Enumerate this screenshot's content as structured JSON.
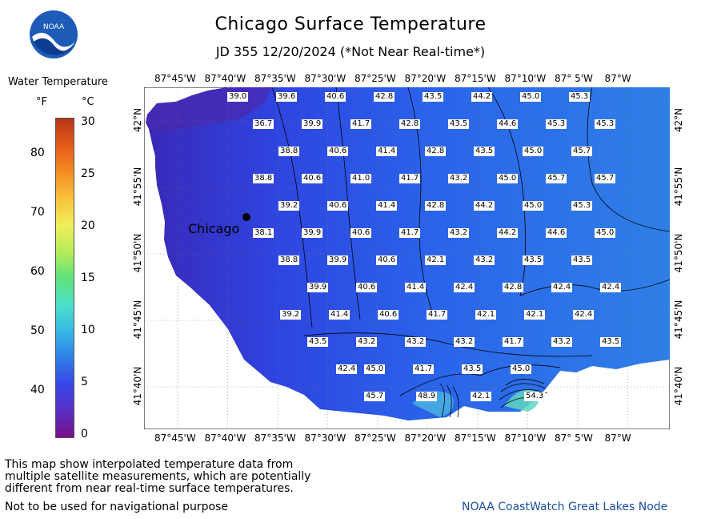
{
  "header": {
    "title": "Chicago Surface Temperature",
    "subtitle": "JD 355 12/20/2024 (*Not Near Real-time*)",
    "logo_text": "NOAA"
  },
  "legend": {
    "title": "Water Temperature",
    "unit_f": "°F",
    "unit_c": "°C",
    "f_ticks": [
      "80",
      "70",
      "60",
      "50",
      "40"
    ],
    "c_ticks": [
      "30",
      "25",
      "20",
      "15",
      "10",
      "5",
      "0"
    ],
    "colors": [
      "#7a0f8a",
      "#5a2fc4",
      "#3a46e8",
      "#2f7fe6",
      "#38b8e6",
      "#4de0c8",
      "#5fe27a",
      "#b8ec5a",
      "#f0ef5a",
      "#f7c23a",
      "#f58a22",
      "#e35a18",
      "#b4361a"
    ]
  },
  "map": {
    "lon_labels": [
      "87°45'W",
      "87°40'W",
      "87°35'W",
      "87°30'W",
      "87°25'W",
      "87°20'W",
      "87°15'W",
      "87°10'W",
      "87° 5'W",
      "87°W"
    ],
    "lat_labels": [
      "42°N",
      "41°55'N",
      "41°50'N",
      "41°45'N",
      "41°40'N"
    ],
    "city_label": "Chicago",
    "temperature_points": [
      {
        "label": "39.0",
        "row": 0,
        "col": 0
      },
      {
        "label": "39.6",
        "row": 0,
        "col": 1
      },
      {
        "label": "40.6",
        "row": 0,
        "col": 2
      },
      {
        "label": "42.8",
        "row": 0,
        "col": 3
      },
      {
        "label": "43.5",
        "row": 0,
        "col": 4
      },
      {
        "label": "44.2",
        "row": 0,
        "col": 5
      },
      {
        "label": "45.0",
        "row": 0,
        "col": 6
      },
      {
        "label": "45.3",
        "row": 0,
        "col": 7
      },
      {
        "label": "36.7",
        "row": 1,
        "col": 0
      },
      {
        "label": "39.9",
        "row": 1,
        "col": 1
      },
      {
        "label": "41.7",
        "row": 1,
        "col": 2
      },
      {
        "label": "42.8",
        "row": 1,
        "col": 3
      },
      {
        "label": "43.5",
        "row": 1,
        "col": 4
      },
      {
        "label": "44.6",
        "row": 1,
        "col": 5
      },
      {
        "label": "45.3",
        "row": 1,
        "col": 6
      },
      {
        "label": "45.3",
        "row": 1,
        "col": 7
      },
      {
        "label": "38.8",
        "row": 2,
        "col": 0
      },
      {
        "label": "40.6",
        "row": 2,
        "col": 1
      },
      {
        "label": "41.4",
        "row": 2,
        "col": 2
      },
      {
        "label": "42.8",
        "row": 2,
        "col": 3
      },
      {
        "label": "43.5",
        "row": 2,
        "col": 4
      },
      {
        "label": "45.0",
        "row": 2,
        "col": 5
      },
      {
        "label": "45.7",
        "row": 2,
        "col": 6
      },
      {
        "label": "38.8",
        "row": 3,
        "col": 0
      },
      {
        "label": "40.6",
        "row": 3,
        "col": 1
      },
      {
        "label": "41.0",
        "row": 3,
        "col": 2
      },
      {
        "label": "41.7",
        "row": 3,
        "col": 3
      },
      {
        "label": "43.2",
        "row": 3,
        "col": 4
      },
      {
        "label": "45.0",
        "row": 3,
        "col": 5
      },
      {
        "label": "45.7",
        "row": 3,
        "col": 6
      },
      {
        "label": "45.7",
        "row": 3,
        "col": 7
      },
      {
        "label": "39.2",
        "row": 4,
        "col": 0
      },
      {
        "label": "40.6",
        "row": 4,
        "col": 1
      },
      {
        "label": "41.4",
        "row": 4,
        "col": 2
      },
      {
        "label": "42.8",
        "row": 4,
        "col": 3
      },
      {
        "label": "44.2",
        "row": 4,
        "col": 4
      },
      {
        "label": "45.0",
        "row": 4,
        "col": 5
      },
      {
        "label": "45.3",
        "row": 4,
        "col": 6
      },
      {
        "label": "38.1",
        "row": 5,
        "col": 0
      },
      {
        "label": "39.9",
        "row": 5,
        "col": 1
      },
      {
        "label": "40.6",
        "row": 5,
        "col": 2
      },
      {
        "label": "41.7",
        "row": 5,
        "col": 3
      },
      {
        "label": "43.2",
        "row": 5,
        "col": 4
      },
      {
        "label": "44.2",
        "row": 5,
        "col": 5
      },
      {
        "label": "44.6",
        "row": 5,
        "col": 6
      },
      {
        "label": "45.0",
        "row": 5,
        "col": 7
      },
      {
        "label": "38.8",
        "row": 6,
        "col": 0
      },
      {
        "label": "39.9",
        "row": 6,
        "col": 1
      },
      {
        "label": "40.6",
        "row": 6,
        "col": 2
      },
      {
        "label": "42.1",
        "row": 6,
        "col": 3
      },
      {
        "label": "43.2",
        "row": 6,
        "col": 4
      },
      {
        "label": "43.5",
        "row": 6,
        "col": 5
      },
      {
        "label": "43.5",
        "row": 6,
        "col": 6
      },
      {
        "label": "39.9",
        "row": 7,
        "col": 0
      },
      {
        "label": "40.6",
        "row": 7,
        "col": 1
      },
      {
        "label": "41.4",
        "row": 7,
        "col": 2
      },
      {
        "label": "42.4",
        "row": 7,
        "col": 3
      },
      {
        "label": "42.8",
        "row": 7,
        "col": 4
      },
      {
        "label": "42.4",
        "row": 7,
        "col": 5
      },
      {
        "label": "42.4",
        "row": 7,
        "col": 6
      },
      {
        "label": "39.2",
        "row": 8,
        "col": 0
      },
      {
        "label": "41.4",
        "row": 8,
        "col": 1
      },
      {
        "label": "40.6",
        "row": 8,
        "col": 2
      },
      {
        "label": "41.7",
        "row": 8,
        "col": 3
      },
      {
        "label": "42.1",
        "row": 8,
        "col": 4
      },
      {
        "label": "42.1",
        "row": 8,
        "col": 5
      },
      {
        "label": "42.4",
        "row": 8,
        "col": 6
      },
      {
        "label": "43.5",
        "row": 9,
        "col": 0
      },
      {
        "label": "43.2",
        "row": 9,
        "col": 1
      },
      {
        "label": "43.2",
        "row": 9,
        "col": 2
      },
      {
        "label": "43.2",
        "row": 9,
        "col": 3
      },
      {
        "label": "41.7",
        "row": 9,
        "col": 4
      },
      {
        "label": "43.2",
        "row": 9,
        "col": 5
      },
      {
        "label": "43.5",
        "row": 9,
        "col": 6
      },
      {
        "label": "42.4",
        "row": 10,
        "col": 0
      },
      {
        "label": "45.0",
        "row": 10,
        "col": 1
      },
      {
        "label": "41.7",
        "row": 10,
        "col": 2
      },
      {
        "label": "43.5",
        "row": 10,
        "col": 3
      },
      {
        "label": "45.0",
        "row": 10,
        "col": 4
      },
      {
        "label": "45.7",
        "row": 11,
        "col": 0
      },
      {
        "label": "48.9",
        "row": 11,
        "col": 1
      },
      {
        "label": "42.1",
        "row": 11,
        "col": 2
      },
      {
        "label": "54.3",
        "row": 11,
        "col": 3
      }
    ]
  },
  "footer": {
    "disclaimer": "This map show interpolated temperature data from\nmultiple satellite measurements, which are potentially\ndifferent from near real-time surface temperatures.",
    "nav_warning": "Not to be used for navigational purpose",
    "credit": "NOAA CoastWatch Great Lakes Node"
  }
}
